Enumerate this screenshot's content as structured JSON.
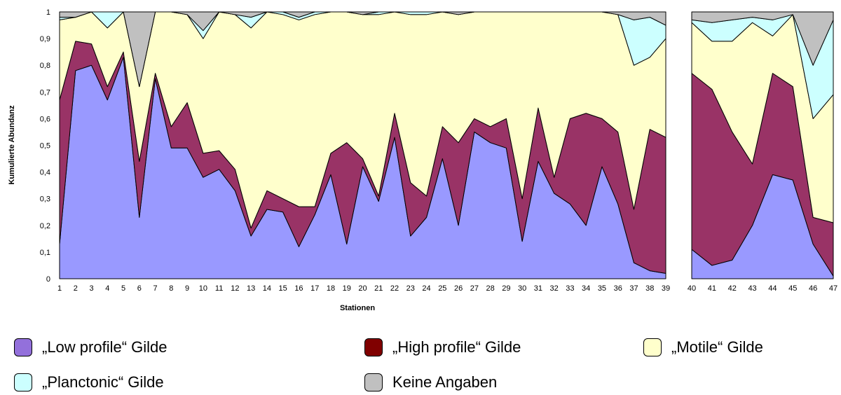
{
  "chart_data": {
    "type": "area",
    "stacked": true,
    "ylabel": "Kumulierte Abundanz",
    "xlabel": "Stationen",
    "ylim": [
      0,
      1
    ],
    "yticks": [
      "0",
      "0,1",
      "0,2",
      "0,3",
      "0,4",
      "0,5",
      "0,6",
      "0,7",
      "0,8",
      "0,9",
      "1"
    ],
    "grid": false,
    "legend_position": "bottom",
    "series_meta": [
      {
        "name": "„Low profile“ Gilde",
        "color": "#9999ff"
      },
      {
        "name": "„High profile“ Gilde",
        "color": "#993366"
      },
      {
        "name": "„Motile“ Gilde",
        "color": "#ffffcc"
      },
      {
        "name": "„Planctonic“ Gilde",
        "color": "#ccffff"
      },
      {
        "name": "Keine Angaben",
        "color": "#c0c0c0"
      }
    ],
    "legend_swatch_colors": [
      "#9370db",
      "#800000",
      "#ffffcc",
      "#ccffff",
      "#c0c0c0"
    ],
    "panels": [
      {
        "categories": [
          "1",
          "2",
          "3",
          "4",
          "5",
          "6",
          "7",
          "8",
          "9",
          "10",
          "11",
          "12",
          "13",
          "14",
          "15",
          "16",
          "17",
          "18",
          "19",
          "20",
          "21",
          "22",
          "23",
          "24",
          "25",
          "26",
          "27",
          "28",
          "29",
          "30",
          "31",
          "32",
          "33",
          "34",
          "35",
          "36",
          "37",
          "38",
          "39"
        ],
        "cumulative": [
          [
            0.13,
            0.78,
            0.8,
            0.67,
            0.83,
            0.23,
            0.75,
            0.49,
            0.49,
            0.38,
            0.41,
            0.33,
            0.16,
            0.26,
            0.25,
            0.12,
            0.24,
            0.39,
            0.13,
            0.42,
            0.29,
            0.53,
            0.16,
            0.23,
            0.45,
            0.2,
            0.55,
            0.51,
            0.49,
            0.14,
            0.44,
            0.32,
            0.28,
            0.2,
            0.42,
            0.28,
            0.06,
            0.03,
            0.02
          ],
          [
            0.67,
            0.89,
            0.88,
            0.72,
            0.85,
            0.44,
            0.77,
            0.57,
            0.66,
            0.47,
            0.48,
            0.41,
            0.19,
            0.33,
            0.3,
            0.27,
            0.27,
            0.47,
            0.51,
            0.45,
            0.31,
            0.62,
            0.36,
            0.31,
            0.57,
            0.51,
            0.6,
            0.57,
            0.6,
            0.3,
            0.64,
            0.38,
            0.6,
            0.62,
            0.6,
            0.55,
            0.26,
            0.56,
            0.53
          ],
          [
            0.97,
            0.98,
            1.0,
            0.94,
            1.0,
            0.72,
            1.0,
            1.0,
            0.99,
            0.9,
            1.0,
            0.99,
            0.94,
            1.0,
            0.99,
            0.97,
            0.99,
            1.0,
            1.0,
            0.99,
            0.99,
            1.0,
            0.99,
            0.99,
            1.0,
            0.99,
            1.0,
            1.0,
            1.0,
            1.0,
            1.0,
            1.0,
            1.0,
            1.0,
            1.0,
            0.99,
            0.8,
            0.83,
            0.9
          ],
          [
            0.98,
            0.98,
            1.0,
            1.0,
            1.0,
            0.72,
            1.0,
            1.0,
            0.99,
            0.93,
            1.0,
            0.99,
            0.98,
            1.0,
            1.0,
            0.98,
            1.0,
            1.0,
            1.0,
            0.99,
            1.0,
            1.0,
            1.0,
            1.0,
            1.0,
            0.99,
            1.0,
            1.0,
            1.0,
            1.0,
            1.0,
            1.0,
            1.0,
            1.0,
            1.0,
            0.99,
            0.97,
            0.98,
            0.95
          ],
          [
            1,
            1,
            1,
            1,
            1,
            1,
            1,
            1,
            1,
            1,
            1,
            1,
            1,
            1,
            1,
            1,
            1,
            1,
            1,
            1,
            1,
            1,
            1,
            1,
            1,
            1,
            1,
            1,
            1,
            1,
            1,
            1,
            1,
            1,
            1,
            1,
            1,
            1,
            1
          ]
        ]
      },
      {
        "categories": [
          "40",
          "41",
          "42",
          "43",
          "44",
          "45",
          "46",
          "47"
        ],
        "cumulative": [
          [
            0.11,
            0.05,
            0.07,
            0.2,
            0.39,
            0.37,
            0.13,
            0.01
          ],
          [
            0.77,
            0.71,
            0.55,
            0.43,
            0.77,
            0.72,
            0.23,
            0.21
          ],
          [
            0.96,
            0.89,
            0.89,
            0.96,
            0.91,
            0.99,
            0.6,
            0.69
          ],
          [
            0.97,
            0.96,
            0.97,
            0.98,
            0.97,
            0.99,
            0.8,
            0.97
          ],
          [
            1,
            1,
            1,
            1,
            1,
            1,
            1,
            1
          ]
        ]
      }
    ]
  }
}
